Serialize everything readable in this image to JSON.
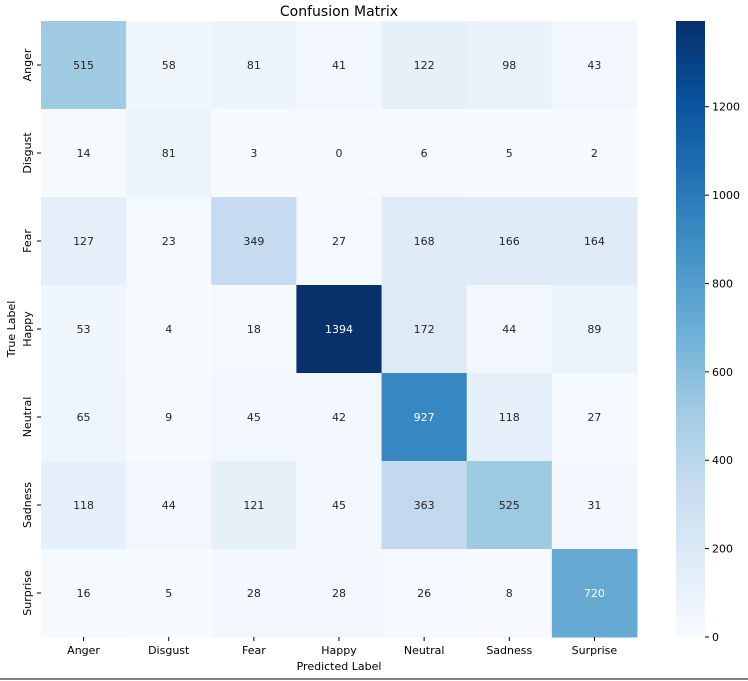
{
  "chart_data": {
    "type": "heatmap",
    "title": "Confusion Matrix",
    "xlabel": "Predicted Label",
    "ylabel": "True Label",
    "x_categories": [
      "Anger",
      "Disgust",
      "Fear",
      "Happy",
      "Neutral",
      "Sadness",
      "Surprise"
    ],
    "y_categories": [
      "Anger",
      "Disgust",
      "Fear",
      "Happy",
      "Neutral",
      "Sadness",
      "Surprise"
    ],
    "matrix": [
      [
        515,
        58,
        81,
        41,
        122,
        98,
        43
      ],
      [
        14,
        81,
        3,
        0,
        6,
        5,
        2
      ],
      [
        127,
        23,
        349,
        27,
        168,
        166,
        164
      ],
      [
        53,
        4,
        18,
        1394,
        172,
        44,
        89
      ],
      [
        65,
        9,
        45,
        42,
        927,
        118,
        27
      ],
      [
        118,
        44,
        121,
        45,
        363,
        525,
        31
      ],
      [
        16,
        5,
        28,
        28,
        26,
        8,
        720
      ]
    ],
    "colormap": "Blues",
    "colorbar": {
      "range": [
        0,
        1394
      ],
      "ticks": [
        0,
        200,
        400,
        600,
        800,
        1000,
        1200
      ]
    },
    "annotations": true
  }
}
